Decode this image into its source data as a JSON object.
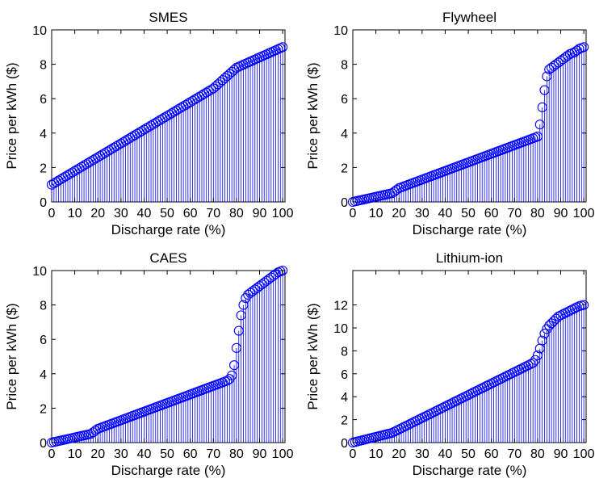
{
  "colors": {
    "series": "#0000ff",
    "axes": "#000000",
    "background": "#ffffff"
  },
  "chart_data": [
    {
      "type": "stem",
      "title": "SMES",
      "xlabel": "Discharge rate (%)",
      "ylabel": "Price per kWh ($)",
      "xlim": [
        0,
        101
      ],
      "ylim": [
        0,
        10
      ],
      "xticks": [
        0,
        10,
        20,
        30,
        40,
        50,
        60,
        70,
        80,
        90,
        100
      ],
      "yticks": [
        0,
        2,
        4,
        6,
        8,
        10
      ],
      "grid": false,
      "series": [
        {
          "values": [
            1.0,
            1.08,
            1.16,
            1.24,
            1.32,
            1.4,
            1.48,
            1.56,
            1.64,
            1.72,
            1.8,
            1.88,
            1.96,
            2.04,
            2.12,
            2.2,
            2.28,
            2.36,
            2.44,
            2.52,
            2.6,
            2.68,
            2.76,
            2.84,
            2.92,
            3.0,
            3.08,
            3.16,
            3.24,
            3.32,
            3.4,
            3.48,
            3.56,
            3.64,
            3.72,
            3.8,
            3.88,
            3.96,
            4.04,
            4.12,
            4.2,
            4.28,
            4.36,
            4.44,
            4.52,
            4.6,
            4.68,
            4.76,
            4.84,
            4.92,
            5.0,
            5.08,
            5.16,
            5.24,
            5.32,
            5.4,
            5.48,
            5.56,
            5.64,
            5.72,
            5.8,
            5.88,
            5.96,
            6.04,
            6.12,
            6.2,
            6.28,
            6.36,
            6.44,
            6.52,
            6.6,
            6.72,
            6.84,
            6.96,
            7.08,
            7.2,
            7.32,
            7.44,
            7.56,
            7.68,
            7.8,
            7.86,
            7.92,
            7.98,
            8.04,
            8.1,
            8.16,
            8.22,
            8.28,
            8.34,
            8.4,
            8.46,
            8.52,
            8.58,
            8.64,
            8.7,
            8.76,
            8.82,
            8.88,
            8.94,
            9.0
          ]
        }
      ]
    },
    {
      "type": "stem",
      "title": "Flywheel",
      "xlabel": "Discharge rate (%)",
      "ylabel": "Price per kWh ($)",
      "xlim": [
        0,
        101
      ],
      "ylim": [
        0,
        10
      ],
      "xticks": [
        0,
        10,
        20,
        30,
        40,
        50,
        60,
        70,
        80,
        90,
        100
      ],
      "yticks": [
        0,
        2,
        4,
        6,
        8,
        10
      ],
      "grid": false,
      "series": [
        {
          "values": [
            0.0,
            0.03,
            0.06,
            0.09,
            0.12,
            0.15,
            0.18,
            0.21,
            0.24,
            0.27,
            0.3,
            0.33,
            0.36,
            0.39,
            0.42,
            0.45,
            0.48,
            0.51,
            0.6,
            0.7,
            0.8,
            0.85,
            0.9,
            0.95,
            1.0,
            1.05,
            1.1,
            1.15,
            1.2,
            1.25,
            1.3,
            1.35,
            1.4,
            1.45,
            1.5,
            1.55,
            1.6,
            1.65,
            1.7,
            1.75,
            1.8,
            1.85,
            1.9,
            1.95,
            2.0,
            2.05,
            2.1,
            2.15,
            2.2,
            2.25,
            2.3,
            2.35,
            2.4,
            2.45,
            2.5,
            2.55,
            2.6,
            2.65,
            2.7,
            2.75,
            2.8,
            2.85,
            2.9,
            2.95,
            3.0,
            3.05,
            3.1,
            3.15,
            3.2,
            3.25,
            3.3,
            3.35,
            3.4,
            3.45,
            3.5,
            3.55,
            3.6,
            3.65,
            3.7,
            3.75,
            3.8,
            4.5,
            5.5,
            6.5,
            7.3,
            7.7,
            7.8,
            7.9,
            8.0,
            8.1,
            8.2,
            8.3,
            8.4,
            8.5,
            8.6,
            8.65,
            8.7,
            8.8,
            8.9,
            8.95,
            9.0
          ]
        }
      ]
    },
    {
      "type": "stem",
      "title": "CAES",
      "xlabel": "Discharge rate (%)",
      "ylabel": "Price per kWh ($)",
      "xlim": [
        0,
        101
      ],
      "ylim": [
        0,
        10
      ],
      "xticks": [
        0,
        10,
        20,
        30,
        40,
        50,
        60,
        70,
        80,
        90,
        100
      ],
      "yticks": [
        0,
        2,
        4,
        6,
        8,
        10
      ],
      "grid": false,
      "series": [
        {
          "values": [
            0.0,
            0.03,
            0.06,
            0.09,
            0.12,
            0.15,
            0.18,
            0.21,
            0.24,
            0.27,
            0.3,
            0.33,
            0.36,
            0.39,
            0.42,
            0.45,
            0.48,
            0.51,
            0.6,
            0.7,
            0.8,
            0.85,
            0.9,
            0.95,
            1.0,
            1.05,
            1.1,
            1.15,
            1.2,
            1.25,
            1.3,
            1.35,
            1.4,
            1.45,
            1.5,
            1.55,
            1.6,
            1.65,
            1.7,
            1.75,
            1.8,
            1.85,
            1.9,
            1.95,
            2.0,
            2.05,
            2.1,
            2.15,
            2.2,
            2.25,
            2.3,
            2.35,
            2.4,
            2.45,
            2.5,
            2.55,
            2.6,
            2.65,
            2.7,
            2.75,
            2.8,
            2.85,
            2.9,
            2.95,
            3.0,
            3.05,
            3.1,
            3.15,
            3.2,
            3.25,
            3.3,
            3.35,
            3.4,
            3.45,
            3.5,
            3.55,
            3.6,
            3.7,
            3.9,
            4.5,
            5.5,
            6.5,
            7.4,
            8.0,
            8.4,
            8.6,
            8.7,
            8.8,
            8.9,
            9.0,
            9.1,
            9.2,
            9.3,
            9.4,
            9.5,
            9.6,
            9.7,
            9.8,
            9.9,
            9.95,
            10.0
          ]
        }
      ]
    },
    {
      "type": "stem",
      "title": "Lithium-ion",
      "xlabel": "Discharge rate (%)",
      "ylabel": "Price per kWh ($)",
      "xlim": [
        0,
        101
      ],
      "ylim": [
        0,
        15
      ],
      "xticks": [
        0,
        10,
        20,
        30,
        40,
        50,
        60,
        70,
        80,
        90,
        100
      ],
      "yticks": [
        0,
        2,
        4,
        6,
        8,
        10,
        12
      ],
      "grid": false,
      "series": [
        {
          "values": [
            0.0,
            0.05,
            0.1,
            0.15,
            0.2,
            0.25,
            0.3,
            0.35,
            0.4,
            0.45,
            0.5,
            0.55,
            0.6,
            0.65,
            0.7,
            0.75,
            0.8,
            0.85,
            0.95,
            1.05,
            1.15,
            1.25,
            1.35,
            1.45,
            1.55,
            1.65,
            1.75,
            1.85,
            1.95,
            2.05,
            2.15,
            2.25,
            2.35,
            2.45,
            2.55,
            2.65,
            2.75,
            2.85,
            2.95,
            3.05,
            3.15,
            3.25,
            3.35,
            3.45,
            3.55,
            3.65,
            3.75,
            3.85,
            3.95,
            4.05,
            4.15,
            4.25,
            4.35,
            4.45,
            4.55,
            4.65,
            4.75,
            4.85,
            4.95,
            5.05,
            5.15,
            5.25,
            5.35,
            5.45,
            5.55,
            5.65,
            5.75,
            5.85,
            5.95,
            6.05,
            6.15,
            6.25,
            6.35,
            6.45,
            6.55,
            6.65,
            6.75,
            6.85,
            6.95,
            7.2,
            7.6,
            8.2,
            8.9,
            9.5,
            9.9,
            10.2,
            10.4,
            10.6,
            10.8,
            11.0,
            11.1,
            11.2,
            11.3,
            11.4,
            11.5,
            11.6,
            11.7,
            11.8,
            11.9,
            11.95,
            12.0
          ]
        }
      ]
    }
  ]
}
